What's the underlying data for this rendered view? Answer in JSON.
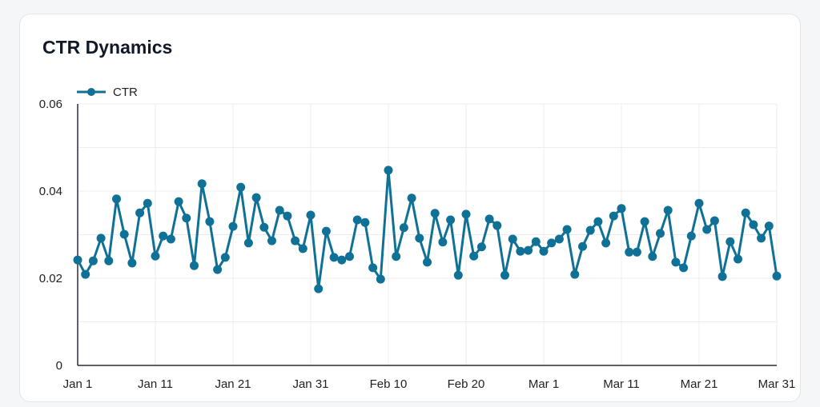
{
  "card": {
    "title": "CTR Dynamics"
  },
  "chart_data": {
    "type": "line",
    "title": "CTR Dynamics",
    "xlabel": "",
    "ylabel": "",
    "ylim": [
      0,
      0.06
    ],
    "y_ticks": [
      "0",
      "0.02",
      "0.04",
      "0.06"
    ],
    "x_ticks": [
      "Jan 1",
      "Jan 11",
      "Jan 21",
      "Jan 31",
      "Feb 10",
      "Feb 20",
      "Mar 1",
      "Mar 11",
      "Mar 21",
      "Mar 31"
    ],
    "grid": true,
    "legend_position": "top-left",
    "color": "#0f7196",
    "series": [
      {
        "name": "CTR",
        "x": [
          "Jan 1",
          "Jan 2",
          "Jan 3",
          "Jan 4",
          "Jan 5",
          "Jan 6",
          "Jan 7",
          "Jan 8",
          "Jan 9",
          "Jan 10",
          "Jan 11",
          "Jan 12",
          "Jan 13",
          "Jan 14",
          "Jan 15",
          "Jan 16",
          "Jan 17",
          "Jan 18",
          "Jan 19",
          "Jan 20",
          "Jan 21",
          "Jan 22",
          "Jan 23",
          "Jan 24",
          "Jan 25",
          "Jan 26",
          "Jan 27",
          "Jan 28",
          "Jan 29",
          "Jan 30",
          "Jan 31",
          "Feb 1",
          "Feb 2",
          "Feb 3",
          "Feb 4",
          "Feb 5",
          "Feb 6",
          "Feb 7",
          "Feb 8",
          "Feb 9",
          "Feb 10",
          "Feb 11",
          "Feb 12",
          "Feb 13",
          "Feb 14",
          "Feb 15",
          "Feb 16",
          "Feb 17",
          "Feb 18",
          "Feb 19",
          "Feb 20",
          "Feb 21",
          "Feb 22",
          "Feb 23",
          "Feb 24",
          "Feb 25",
          "Feb 26",
          "Feb 27",
          "Feb 28",
          "Feb 29",
          "Mar 1",
          "Mar 2",
          "Mar 3",
          "Mar 4",
          "Mar 5",
          "Mar 6",
          "Mar 7",
          "Mar 8",
          "Mar 9",
          "Mar 10",
          "Mar 11",
          "Mar 12",
          "Mar 13",
          "Mar 14",
          "Mar 15",
          "Mar 16",
          "Mar 17",
          "Mar 18",
          "Mar 19",
          "Mar 20",
          "Mar 21",
          "Mar 22",
          "Mar 23",
          "Mar 24",
          "Mar 25",
          "Mar 26",
          "Mar 27",
          "Mar 28",
          "Mar 29",
          "Mar 30",
          "Mar 31"
        ],
        "values": [
          0.0242,
          0.0209,
          0.024,
          0.0292,
          0.024,
          0.0382,
          0.0301,
          0.0235,
          0.035,
          0.0372,
          0.0251,
          0.0297,
          0.029,
          0.0376,
          0.0338,
          0.0229,
          0.0417,
          0.033,
          0.022,
          0.0248,
          0.0319,
          0.0409,
          0.0281,
          0.0385,
          0.0317,
          0.0286,
          0.0356,
          0.0343,
          0.0286,
          0.0268,
          0.0345,
          0.0176,
          0.0308,
          0.0248,
          0.0242,
          0.025,
          0.0334,
          0.0328,
          0.0224,
          0.0198,
          0.0448,
          0.025,
          0.0316,
          0.0384,
          0.0292,
          0.0237,
          0.0349,
          0.0283,
          0.0334,
          0.0207,
          0.0347,
          0.0251,
          0.0272,
          0.0336,
          0.0321,
          0.0207,
          0.029,
          0.0262,
          0.0264,
          0.0284,
          0.0262,
          0.0281,
          0.029,
          0.0312,
          0.0209,
          0.0273,
          0.031,
          0.033,
          0.0281,
          0.0343,
          0.036,
          0.026,
          0.026,
          0.033,
          0.025,
          0.0303,
          0.0356,
          0.0237,
          0.0224,
          0.0297,
          0.0372,
          0.0312,
          0.0332,
          0.0204,
          0.0284,
          0.0244,
          0.035,
          0.0323,
          0.0292,
          0.032,
          0.0205
        ]
      }
    ]
  }
}
